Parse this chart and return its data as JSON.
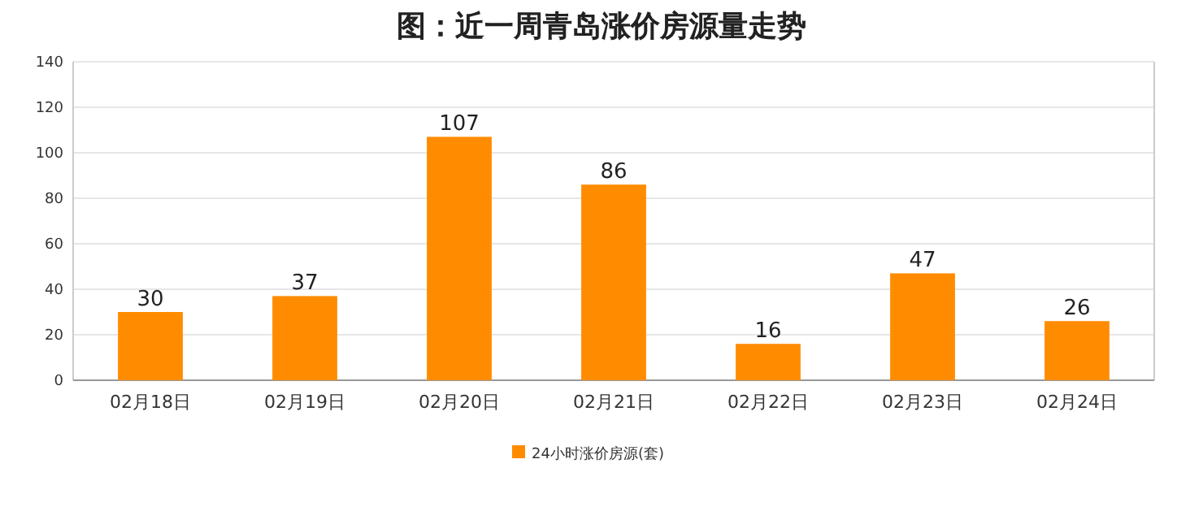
{
  "chart_data": {
    "type": "bar",
    "title": "图：近一周青岛涨价房源量走势",
    "categories": [
      "02月18日",
      "02月19日",
      "02月20日",
      "02月21日",
      "02月22日",
      "02月23日",
      "02月24日"
    ],
    "series": [
      {
        "name": "24小时涨价房源(套)",
        "color": "#ff8c00",
        "values": [
          30,
          37,
          107,
          86,
          16,
          47,
          26
        ]
      }
    ],
    "ylim": [
      0,
      140
    ],
    "yticks": [
      0,
      20,
      40,
      60,
      80,
      100,
      120,
      140
    ],
    "grid": "y",
    "legend": "bottom",
    "data_labels": true
  }
}
